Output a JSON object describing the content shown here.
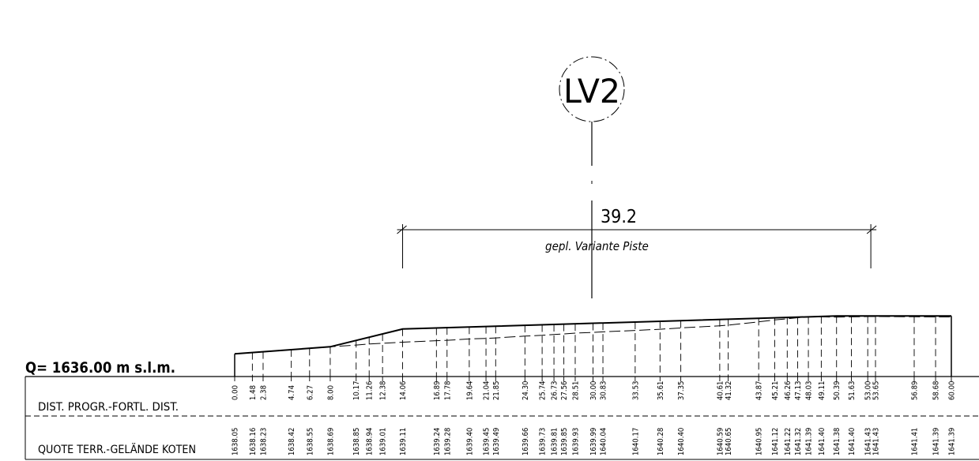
{
  "label_bubble": "LV2",
  "width_dimension": "39.2",
  "width_caption": "gepl. Variante Piste",
  "datum_label": "Q=  1636.00  m  s.l.m.",
  "row_labels": {
    "distance": "DIST. PROGR.-FORTL. DIST.",
    "elevation": "QUOTE TERR.-GELÄNDE KOTEN"
  },
  "stations": [
    {
      "d": "0.00",
      "z": "1638.05"
    },
    {
      "d": "1.48",
      "z": "1638.16"
    },
    {
      "d": "2.38",
      "z": "1638.23"
    },
    {
      "d": "4.74",
      "z": "1638.42"
    },
    {
      "d": "6.27",
      "z": "1638.55"
    },
    {
      "d": "8.00",
      "z": "1638.69"
    },
    {
      "d": "10.17",
      "z": "1638.85"
    },
    {
      "d": "11.26",
      "z": "1638.94"
    },
    {
      "d": "12.38",
      "z": "1639.01"
    },
    {
      "d": "14.06",
      "z": "1639.11"
    },
    {
      "d": "16.89",
      "z": "1639.24"
    },
    {
      "d": "17.78",
      "z": "1639.28"
    },
    {
      "d": "19.64",
      "z": "1639.40"
    },
    {
      "d": "21.04",
      "z": "1639.45"
    },
    {
      "d": "21.85",
      "z": "1639.49"
    },
    {
      "d": "24.30",
      "z": "1639.66"
    },
    {
      "d": "25.74",
      "z": "1639.73"
    },
    {
      "d": "26.73",
      "z": "1639.81"
    },
    {
      "d": "27.56",
      "z": "1639.85"
    },
    {
      "d": "28.51",
      "z": "1639.93"
    },
    {
      "d": "30.00",
      "z": "1639.99"
    },
    {
      "d": "30.83",
      "z": "1640.04"
    },
    {
      "d": "33.53",
      "z": "1640.17"
    },
    {
      "d": "35.61",
      "z": "1640.28"
    },
    {
      "d": "37.35",
      "z": "1640.40"
    },
    {
      "d": "40.61",
      "z": "1640.59"
    },
    {
      "d": "41.32",
      "z": "1640.65"
    },
    {
      "d": "43.87",
      "z": "1640.95"
    },
    {
      "d": "45.21",
      "z": "1641.12"
    },
    {
      "d": "46.26",
      "z": "1641.22"
    },
    {
      "d": "47.13",
      "z": "1641.32"
    },
    {
      "d": "48.03",
      "z": "1641.39"
    },
    {
      "d": "49.11",
      "z": "1641.40"
    },
    {
      "d": "50.39",
      "z": "1641.38"
    },
    {
      "d": "51.63",
      "z": "1641.40"
    },
    {
      "d": "53.00",
      "z": "1641.43"
    },
    {
      "d": "53.65",
      "z": "1641.43"
    },
    {
      "d": "56.89",
      "z": "1641.41"
    },
    {
      "d": "58.68",
      "z": "1641.39"
    },
    {
      "d": "60.00",
      "z": "1641.39"
    }
  ],
  "design_profile": [
    {
      "d": 0.0,
      "z": 1638.05
    },
    {
      "d": 8.0,
      "z": 1638.69
    },
    {
      "d": 14.06,
      "z": 1640.3
    },
    {
      "d": 50.39,
      "z": 1641.48
    },
    {
      "d": 60.0,
      "z": 1641.48
    }
  ],
  "design_width_range": [
    14.06,
    53.26
  ]
}
